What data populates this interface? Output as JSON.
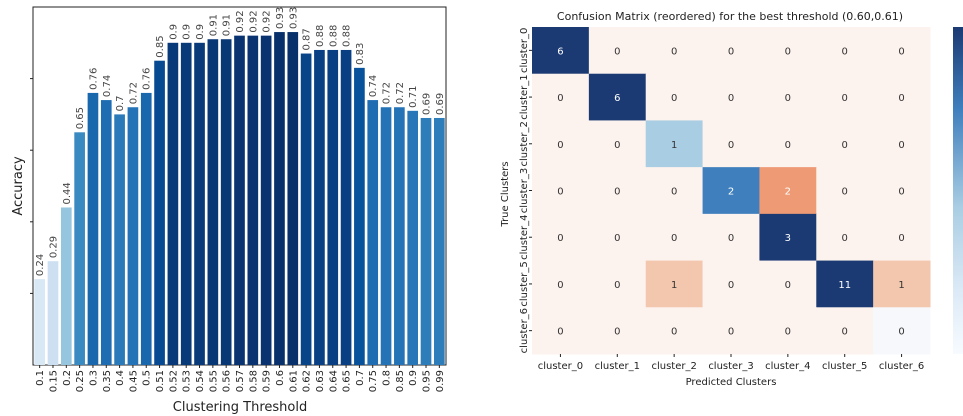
{
  "chart_data": [
    {
      "type": "bar",
      "title": "",
      "xlabel": "Clustering Threshold",
      "ylabel": "Accuracy",
      "ylim": [
        0,
        1.0
      ],
      "grid": false,
      "categories": [
        "0.1",
        "0.15",
        "0.2",
        "0.25",
        "0.3",
        "0.35",
        "0.4",
        "0.45",
        "0.5",
        "0.51",
        "0.52",
        "0.53",
        "0.54",
        "0.55",
        "0.56",
        "0.57",
        "0.58",
        "0.59",
        "0.6",
        "0.61",
        "0.62",
        "0.63",
        "0.64",
        "0.65",
        "0.7",
        "0.75",
        "0.8",
        "0.85",
        "0.9",
        "0.95",
        "0.99"
      ],
      "values": [
        0.24,
        0.29,
        0.44,
        0.65,
        0.76,
        0.74,
        0.7,
        0.72,
        0.76,
        0.85,
        0.9,
        0.9,
        0.9,
        0.91,
        0.91,
        0.92,
        0.92,
        0.92,
        0.93,
        0.93,
        0.87,
        0.88,
        0.88,
        0.88,
        0.83,
        0.74,
        0.72,
        0.72,
        0.71,
        0.69,
        0.69
      ],
      "data_labels": [
        "0.24",
        "0.29",
        "0.44",
        "0.65",
        "0.76",
        "0.74",
        "0.7",
        "0.72",
        "0.76",
        "0.85",
        "0.9",
        "0.9",
        "0.9",
        "0.91",
        "0.91",
        "0.92",
        "0.92",
        "0.92",
        "0.93",
        "0.93",
        "0.87",
        "0.88",
        "0.88",
        "0.88",
        "0.83",
        "0.74",
        "0.72",
        "0.72",
        "0.71",
        "0.69",
        "0.69"
      ],
      "colormap": "Blues"
    },
    {
      "type": "heatmap",
      "title": "Confusion Matrix (reordered) for the best threshold (0.60,0.61)",
      "xlabel": "Predicted Clusters",
      "ylabel": "True Clusters",
      "x_labels": [
        "cluster_0",
        "cluster_1",
        "cluster_2",
        "cluster_3",
        "cluster_4",
        "cluster_5",
        "cluster_6"
      ],
      "y_labels": [
        "cluster_0",
        "cluster_1",
        "cluster_2",
        "cluster_3",
        "cluster_4",
        "cluster_5",
        "cluster_6"
      ],
      "values": [
        [
          6,
          0,
          0,
          0,
          0,
          0,
          0
        ],
        [
          0,
          6,
          0,
          0,
          0,
          0,
          0
        ],
        [
          0,
          0,
          1,
          0,
          0,
          0,
          0
        ],
        [
          0,
          0,
          0,
          2,
          2,
          0,
          0
        ],
        [
          0,
          0,
          0,
          0,
          3,
          0,
          0
        ],
        [
          0,
          0,
          1,
          0,
          0,
          11,
          1
        ],
        [
          0,
          0,
          0,
          0,
          0,
          0,
          0
        ]
      ],
      "colorbar": true,
      "colors": {
        "full": "#1b3a73",
        "mid_blue": "#3f7fbd",
        "light_blue": "#a9cde3",
        "salmon": "#ee9a75",
        "pale_salmon": "#f2c7ae",
        "background": "#fdf3ee",
        "near_white": "#f6f8fc"
      }
    }
  ]
}
